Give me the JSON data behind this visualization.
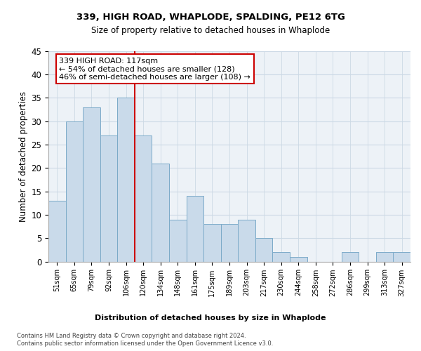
{
  "title1": "339, HIGH ROAD, WHAPLODE, SPALDING, PE12 6TG",
  "title2": "Size of property relative to detached houses in Whaplode",
  "xlabel": "Distribution of detached houses by size in Whaplode",
  "ylabel": "Number of detached properties",
  "footnote1": "Contains HM Land Registry data © Crown copyright and database right 2024.",
  "footnote2": "Contains public sector information licensed under the Open Government Licence v3.0.",
  "annotation_line1": "339 HIGH ROAD: 117sqm",
  "annotation_line2": "← 54% of detached houses are smaller (128)",
  "annotation_line3": "46% of semi-detached houses are larger (108) →",
  "categories": [
    "51sqm",
    "65sqm",
    "79sqm",
    "92sqm",
    "106sqm",
    "120sqm",
    "134sqm",
    "148sqm",
    "161sqm",
    "175sqm",
    "189sqm",
    "203sqm",
    "217sqm",
    "230sqm",
    "244sqm",
    "258sqm",
    "272sqm",
    "286sqm",
    "299sqm",
    "313sqm",
    "327sqm"
  ],
  "values": [
    13,
    30,
    33,
    27,
    35,
    27,
    21,
    9,
    14,
    8,
    8,
    9,
    5,
    2,
    1,
    0,
    0,
    2,
    0,
    2,
    2
  ],
  "bar_color": "#c9daea",
  "bar_edge_color": "#7baac8",
  "vline_color": "#cc0000",
  "annotation_box_color": "#cc0000",
  "grid_color": "#ccd9e5",
  "background_color": "#edf2f7",
  "ylim": [
    0,
    45
  ],
  "yticks": [
    0,
    5,
    10,
    15,
    20,
    25,
    30,
    35,
    40,
    45
  ]
}
